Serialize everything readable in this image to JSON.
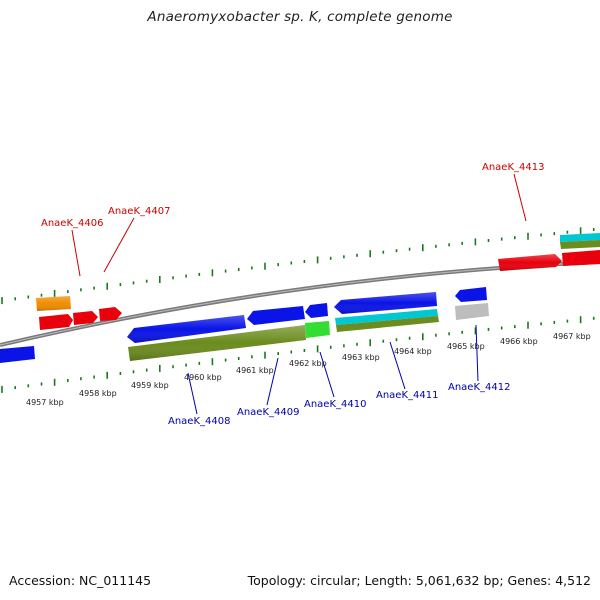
{
  "title": "Anaeromyxobacter sp. K, complete genome",
  "footer": {
    "accession": "Accession: NC_011145",
    "summary": "Topology: circular; Length: 5,061,632 bp; Genes: 4,512"
  },
  "axis": {
    "unit": "kbp",
    "tick_labels": [
      "4957 kbp",
      "4958 kbp",
      "4959 kbp",
      "4960 kbp",
      "4961 kbp",
      "4962 kbp",
      "4963 kbp",
      "4964 kbp",
      "4965 kbp",
      "4966 kbp",
      "4967 kbp"
    ]
  },
  "gene_labels": {
    "top": [
      "AnaeK_4406",
      "AnaeK_4407",
      "AnaeK_4413"
    ],
    "bottom": [
      "AnaeK_4408",
      "AnaeK_4409",
      "AnaeK_4410",
      "AnaeK_4411",
      "AnaeK_4412"
    ]
  },
  "colors": {
    "forward_label": "#cc0000",
    "reverse_label": "#0000aa",
    "tick": "#1a7a1a",
    "backbone": "#808080",
    "gene_red": "#e8000d",
    "gene_orange": "#f08c00",
    "gene_blue": "#0a14e6",
    "gene_olive": "#6b8c1e",
    "gene_cyan": "#00c8d2",
    "gene_green": "#33dd33",
    "gene_gray": "#bdbdbd"
  }
}
